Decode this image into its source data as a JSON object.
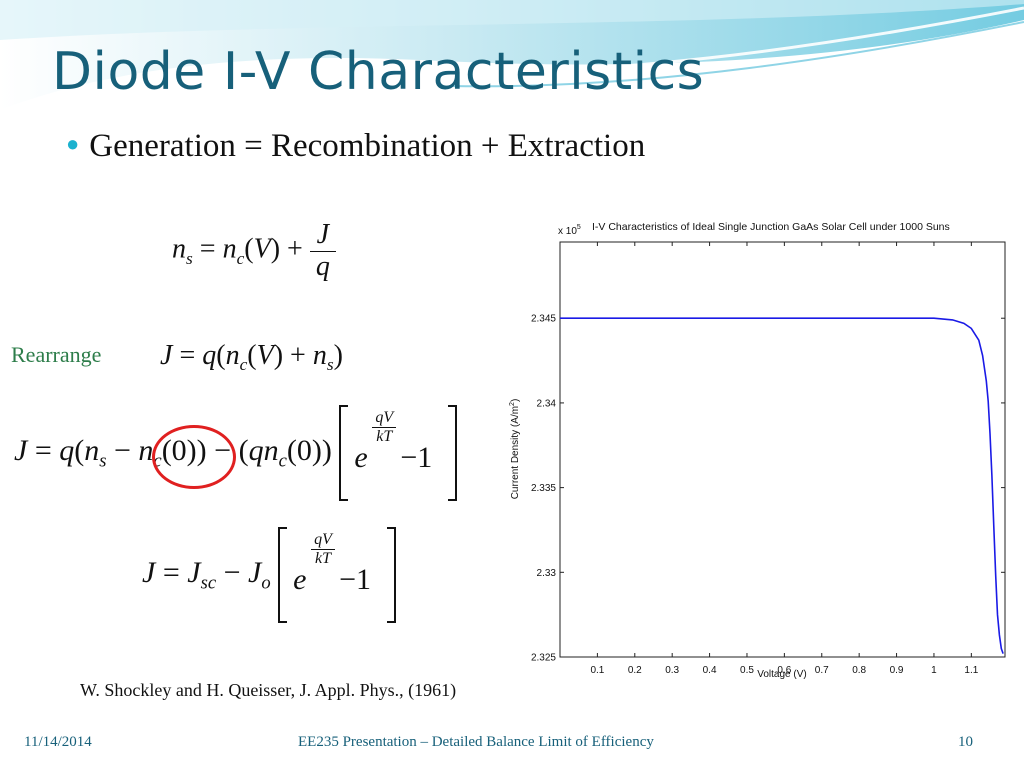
{
  "slide": {
    "title": "Diode I-V Characteristics",
    "bullet": "Generation = Recombination + Extraction",
    "rearrange_label": "Rearrange",
    "citation": "W. Shockley and H. Queisser, J. Appl. Phys., (1961)",
    "footer": {
      "date": "11/14/2014",
      "center": "EE235 Presentation – Detailed Balance Limit of Efficiency",
      "page": "10"
    },
    "colors": {
      "title": "#17607a",
      "accent": "#1cb2cf",
      "rearrange": "#2d7d4a",
      "highlight": "#e02020",
      "curve": "#1a1ae6"
    }
  },
  "equations": {
    "eq1": "n_s = n_c(V) + J/q",
    "eq2": "J = q(n_c(V) + n_s)",
    "eq3": "J = q(n_s − n_c(0)) − (qn_c(0)) [ e^(qV/kT) − 1 ]",
    "eq4": "J = J_sc − J_o [ e^(qV/kT) − 1 ]"
  },
  "chart_data": {
    "type": "line",
    "title": "I-V Characteristics of Ideal Single Junction GaAs Solar Cell under 1000 Suns",
    "xlabel": "Voltage (V)",
    "ylabel": "Current Density (A/m",
    "ylabel_sup": "2",
    "ylabel_close": ")",
    "exponent_prefix": "x 10",
    "exponent_power": "5",
    "xlim": [
      0.0,
      1.19
    ],
    "ylim": [
      2.325,
      2.3495
    ],
    "xticks": [
      0.1,
      0.2,
      0.3,
      0.4,
      0.5,
      0.6,
      0.7,
      0.8,
      0.9,
      1.0,
      1.1
    ],
    "xtick_labels": [
      "0.1",
      "0.2",
      "0.3",
      "0.4",
      "0.5",
      "0.6",
      "0.7",
      "0.8",
      "0.9",
      "1",
      "1.1"
    ],
    "yticks": [
      2.325,
      2.33,
      2.335,
      2.34,
      2.345
    ],
    "ytick_labels": [
      "2.325",
      "2.33",
      "2.335",
      "2.34",
      "2.345"
    ],
    "grid": false,
    "series": [
      {
        "x": [
          0.0,
          0.2,
          0.4,
          0.6,
          0.8,
          1.0,
          1.05,
          1.08,
          1.1,
          1.12,
          1.13,
          1.14,
          1.145,
          1.15,
          1.155,
          1.16,
          1.165,
          1.17,
          1.175,
          1.18,
          1.185
        ],
        "y": [
          2.345,
          2.345,
          2.345,
          2.345,
          2.345,
          2.345,
          2.3449,
          2.3447,
          2.3444,
          2.3437,
          2.3428,
          2.3413,
          2.3401,
          2.3382,
          2.3357,
          2.3327,
          2.3298,
          2.3275,
          2.3263,
          2.3255,
          2.3252
        ]
      }
    ]
  }
}
